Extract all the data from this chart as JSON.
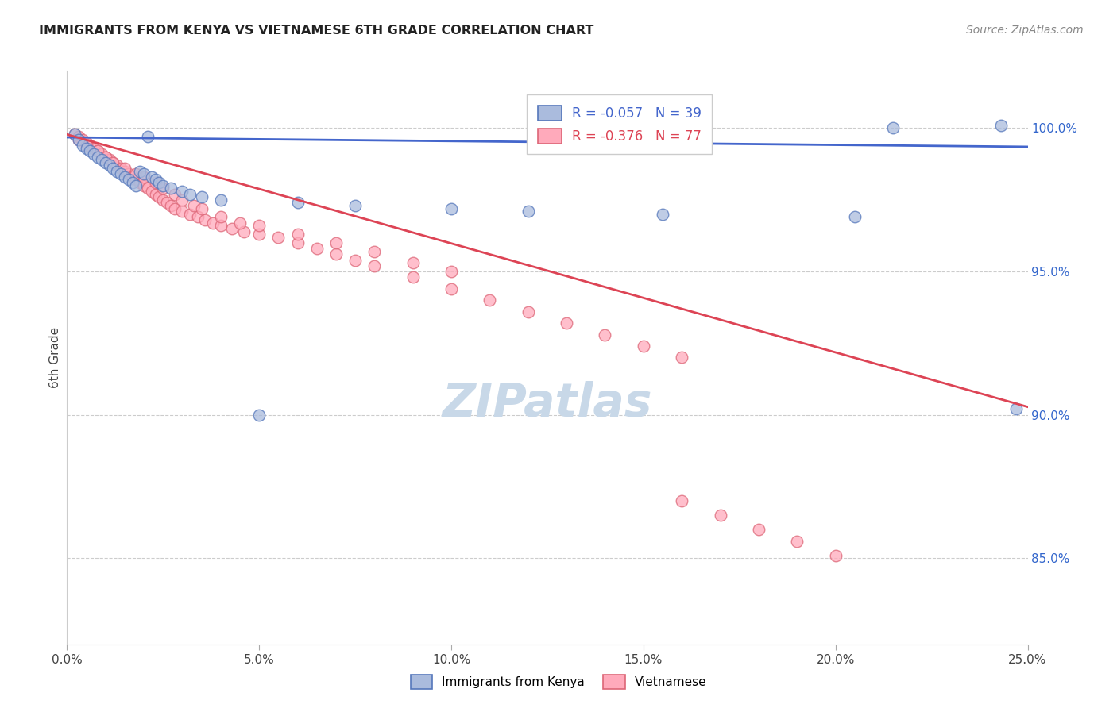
{
  "title": "IMMIGRANTS FROM KENYA VS VIETNAMESE 6TH GRADE CORRELATION CHART",
  "source": "Source: ZipAtlas.com",
  "ylabel": "6th Grade",
  "x_min": 0.0,
  "x_max": 0.25,
  "y_min": 0.82,
  "y_max": 1.02,
  "y_ticks": [
    0.85,
    0.9,
    0.95,
    1.0
  ],
  "y_tick_labels": [
    "85.0%",
    "90.0%",
    "95.0%",
    "100.0%"
  ],
  "x_ticks": [
    0.0,
    0.05,
    0.1,
    0.15,
    0.2,
    0.25
  ],
  "x_tick_labels": [
    "0.0%",
    "5.0%",
    "10.0%",
    "15.0%",
    "20.0%",
    "25.0%"
  ],
  "legend_labels": [
    "Immigrants from Kenya",
    "Vietnamese"
  ],
  "legend_R": [
    -0.057,
    -0.376
  ],
  "legend_N": [
    39,
    77
  ],
  "blue_fill": "#aabbdd",
  "blue_edge": "#5577bb",
  "pink_fill": "#ffaabb",
  "pink_edge": "#dd6677",
  "blue_line_color": "#4466cc",
  "pink_line_color": "#dd4455",
  "watermark_color": "#c8d8e8",
  "kenya_x": [
    0.002,
    0.003,
    0.004,
    0.005,
    0.006,
    0.007,
    0.008,
    0.009,
    0.01,
    0.011,
    0.012,
    0.013,
    0.014,
    0.015,
    0.016,
    0.017,
    0.018,
    0.019,
    0.02,
    0.021,
    0.022,
    0.023,
    0.024,
    0.025,
    0.027,
    0.03,
    0.032,
    0.035,
    0.04,
    0.05,
    0.06,
    0.075,
    0.1,
    0.12,
    0.155,
    0.205,
    0.215,
    0.243,
    0.247
  ],
  "kenya_y": [
    0.998,
    0.996,
    0.994,
    0.993,
    0.992,
    0.991,
    0.99,
    0.989,
    0.988,
    0.987,
    0.986,
    0.985,
    0.984,
    0.983,
    0.982,
    0.981,
    0.98,
    0.985,
    0.984,
    0.997,
    0.983,
    0.982,
    0.981,
    0.98,
    0.979,
    0.978,
    0.977,
    0.976,
    0.975,
    0.9,
    0.974,
    0.973,
    0.972,
    0.971,
    0.97,
    0.969,
    1.0,
    1.001,
    0.902
  ],
  "viet_x": [
    0.002,
    0.003,
    0.004,
    0.005,
    0.006,
    0.007,
    0.008,
    0.009,
    0.01,
    0.011,
    0.012,
    0.013,
    0.014,
    0.015,
    0.016,
    0.017,
    0.018,
    0.019,
    0.02,
    0.021,
    0.022,
    0.023,
    0.024,
    0.025,
    0.026,
    0.027,
    0.028,
    0.03,
    0.032,
    0.034,
    0.036,
    0.038,
    0.04,
    0.043,
    0.046,
    0.05,
    0.055,
    0.06,
    0.065,
    0.07,
    0.075,
    0.08,
    0.09,
    0.1,
    0.11,
    0.12,
    0.13,
    0.14,
    0.15,
    0.16,
    0.003,
    0.005,
    0.008,
    0.01,
    0.012,
    0.015,
    0.018,
    0.02,
    0.023,
    0.025,
    0.028,
    0.03,
    0.033,
    0.035,
    0.04,
    0.045,
    0.05,
    0.06,
    0.07,
    0.08,
    0.09,
    0.1,
    0.16,
    0.17,
    0.18,
    0.19,
    0.2
  ],
  "viet_y": [
    0.998,
    0.997,
    0.996,
    0.995,
    0.994,
    0.993,
    0.992,
    0.991,
    0.99,
    0.989,
    0.988,
    0.987,
    0.986,
    0.985,
    0.984,
    0.983,
    0.982,
    0.981,
    0.98,
    0.979,
    0.978,
    0.977,
    0.976,
    0.975,
    0.974,
    0.973,
    0.972,
    0.971,
    0.97,
    0.969,
    0.968,
    0.967,
    0.966,
    0.965,
    0.964,
    0.963,
    0.962,
    0.96,
    0.958,
    0.956,
    0.954,
    0.952,
    0.948,
    0.944,
    0.94,
    0.936,
    0.932,
    0.928,
    0.924,
    0.92,
    0.996,
    0.994,
    0.992,
    0.99,
    0.988,
    0.986,
    0.984,
    0.983,
    0.981,
    0.979,
    0.977,
    0.975,
    0.973,
    0.972,
    0.969,
    0.967,
    0.966,
    0.963,
    0.96,
    0.957,
    0.953,
    0.95,
    0.87,
    0.865,
    0.86,
    0.856,
    0.851
  ],
  "blue_line_x": [
    0.0,
    0.25
  ],
  "blue_line_y": [
    0.9968,
    0.9935
  ],
  "pink_line_x": [
    0.0,
    0.25
  ],
  "pink_line_y": [
    0.9978,
    0.9028
  ]
}
